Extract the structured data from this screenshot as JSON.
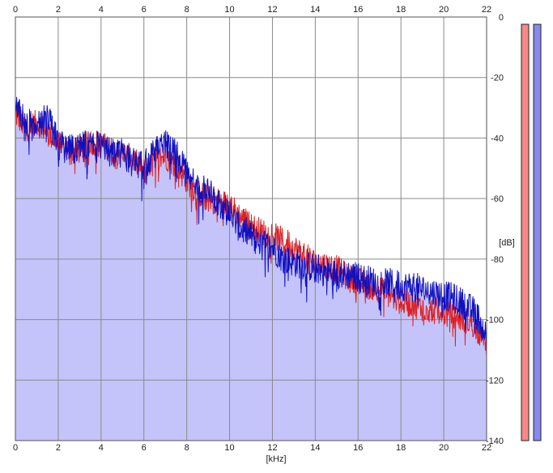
{
  "chart_data": {
    "type": "area",
    "xlabel": "[kHz]",
    "ylabel": "[dB]",
    "xlim": [
      0,
      22
    ],
    "ylim": [
      -140,
      0
    ],
    "x_ticks": [
      "0",
      "2",
      "4",
      "6",
      "8",
      "10",
      "12",
      "14",
      "16",
      "18",
      "20",
      "22"
    ],
    "y_ticks": [
      "0",
      "-20",
      "-40",
      "-60",
      "-80",
      "-100",
      "-120",
      "-140"
    ],
    "grid": true,
    "series": [
      {
        "color": "#e02020",
        "x": [
          0.0,
          0.5,
          1.0,
          1.5,
          2.0,
          2.5,
          3.0,
          3.5,
          4.0,
          4.5,
          5.0,
          5.5,
          6.0,
          6.5,
          7.0,
          7.5,
          8.0,
          8.5,
          9.0,
          9.5,
          10.0,
          10.5,
          11.0,
          11.5,
          12.0,
          12.5,
          13.0,
          13.5,
          14.0,
          14.5,
          15.0,
          15.5,
          16.0,
          16.5,
          17.0,
          17.5,
          18.0,
          18.5,
          19.0,
          19.5,
          20.0,
          20.5,
          21.0,
          21.5,
          22.0
        ],
        "values": [
          -32,
          -37,
          -35,
          -38,
          -42,
          -44,
          -44,
          -41,
          -42,
          -44,
          -45,
          -47,
          -51,
          -47,
          -46,
          -49,
          -54,
          -58,
          -60,
          -61,
          -62,
          -66,
          -69,
          -71,
          -72,
          -74,
          -76,
          -79,
          -81,
          -82,
          -83,
          -86,
          -87,
          -89,
          -90,
          -92,
          -94,
          -95,
          -96,
          -97,
          -98,
          -99,
          -100,
          -102,
          -110
        ]
      },
      {
        "color": "#1010c0",
        "x": [
          0.0,
          0.5,
          1.0,
          1.5,
          2.0,
          2.5,
          3.0,
          3.5,
          4.0,
          4.5,
          5.0,
          5.5,
          6.0,
          6.5,
          7.0,
          7.5,
          8.0,
          8.5,
          9.0,
          9.5,
          10.0,
          10.5,
          11.0,
          11.5,
          12.0,
          12.5,
          13.0,
          13.5,
          14.0,
          14.5,
          15.0,
          15.5,
          16.0,
          16.5,
          17.0,
          17.5,
          18.0,
          18.5,
          19.0,
          19.5,
          20.0,
          20.5,
          21.0,
          21.5,
          22.0
        ],
        "values": [
          -30,
          -35,
          -36,
          -33,
          -42,
          -44,
          -43,
          -42,
          -43,
          -45,
          -45,
          -48,
          -49,
          -45,
          -42,
          -45,
          -52,
          -56,
          -58,
          -61,
          -65,
          -70,
          -72,
          -75,
          -76,
          -80,
          -81,
          -82,
          -83,
          -84,
          -85,
          -85,
          -86,
          -87,
          -88,
          -88,
          -89,
          -89,
          -90,
          -91,
          -92,
          -93,
          -95,
          -98,
          -105
        ]
      }
    ],
    "area_fill": "#c4c4fa",
    "meters": [
      {
        "color": "#f88888",
        "level": -140
      },
      {
        "color": "#8888f0",
        "level": -140
      }
    ]
  }
}
